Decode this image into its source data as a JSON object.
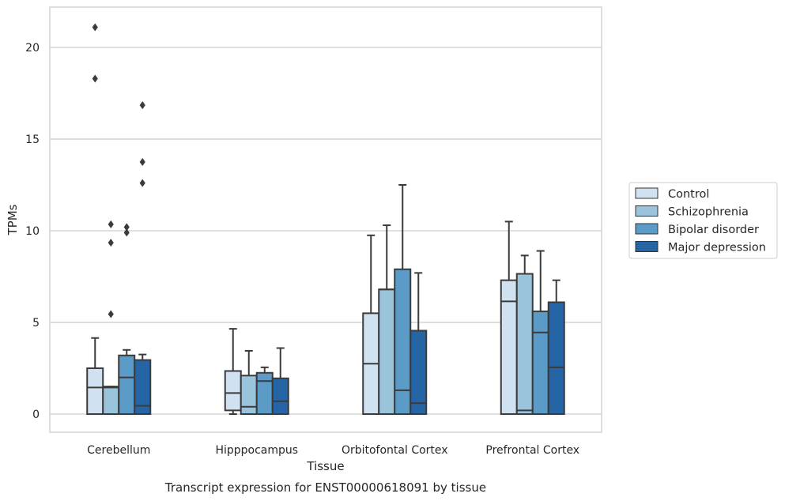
{
  "chart_data": {
    "type": "box",
    "title": "",
    "caption": "Transcript expression for ENST00000618091 by tissue",
    "xlabel": "Tissue",
    "ylabel": "TPMs",
    "ylim": [
      -1,
      22
    ],
    "yticks": [
      0,
      5,
      10,
      15,
      20
    ],
    "grid": "horizontal",
    "legend_position": "right",
    "categories": [
      "Cerebellum",
      "Hipppocampus",
      "Orbitofontal Cortex",
      "Prefrontal Cortex"
    ],
    "series": [
      {
        "name": "Control",
        "color": "#d0e1f2",
        "boxes": [
          {
            "whisker_low": 0,
            "q1": 0,
            "median": 1.45,
            "q3": 2.5,
            "whisker_high": 4.15,
            "outliers": [
              18.3,
              21.1
            ]
          },
          {
            "whisker_low": 0,
            "q1": 0.2,
            "median": 1.15,
            "q3": 2.35,
            "whisker_high": 4.65,
            "outliers": []
          },
          {
            "whisker_low": 0,
            "q1": 0,
            "median": 2.75,
            "q3": 5.5,
            "whisker_high": 9.75,
            "outliers": []
          },
          {
            "whisker_low": 0,
            "q1": 0,
            "median": 6.15,
            "q3": 7.3,
            "whisker_high": 10.5,
            "outliers": []
          }
        ]
      },
      {
        "name": "Schizophrenia",
        "color": "#9ac3dc",
        "boxes": [
          {
            "whisker_low": 0,
            "q1": 0,
            "median": 1.45,
            "q3": 1.5,
            "whisker_high": 1.5,
            "outliers": [
              5.45,
              9.35,
              10.35
            ]
          },
          {
            "whisker_low": 0,
            "q1": 0,
            "median": 0.4,
            "q3": 2.1,
            "whisker_high": 3.45,
            "outliers": []
          },
          {
            "whisker_low": 0,
            "q1": 0,
            "median": 6.8,
            "q3": 6.8,
            "whisker_high": 10.3,
            "outliers": []
          },
          {
            "whisker_low": 0,
            "q1": 0,
            "median": 0.2,
            "q3": 7.65,
            "whisker_high": 8.65,
            "outliers": []
          }
        ]
      },
      {
        "name": "Bipolar disorder",
        "color": "#5b9bc8",
        "boxes": [
          {
            "whisker_low": 0,
            "q1": 0,
            "median": 2.0,
            "q3": 3.2,
            "whisker_high": 3.5,
            "outliers": [
              9.9,
              10.2
            ]
          },
          {
            "whisker_low": 0,
            "q1": 0,
            "median": 1.8,
            "q3": 2.25,
            "whisker_high": 2.55,
            "outliers": []
          },
          {
            "whisker_low": 0,
            "q1": 0,
            "median": 1.3,
            "q3": 7.9,
            "whisker_high": 12.5,
            "outliers": []
          },
          {
            "whisker_low": 0,
            "q1": 0,
            "median": 4.45,
            "q3": 5.6,
            "whisker_high": 8.9,
            "outliers": []
          }
        ]
      },
      {
        "name": "Major depression",
        "color": "#2565a6",
        "boxes": [
          {
            "whisker_low": 0,
            "q1": 0,
            "median": 0.45,
            "q3": 2.95,
            "whisker_high": 3.25,
            "outliers": [
              12.6,
              13.75,
              16.85
            ]
          },
          {
            "whisker_low": 0,
            "q1": 0,
            "median": 0.7,
            "q3": 1.95,
            "whisker_high": 3.6,
            "outliers": []
          },
          {
            "whisker_low": 0,
            "q1": 0,
            "median": 0.6,
            "q3": 4.55,
            "whisker_high": 7.7,
            "outliers": []
          },
          {
            "whisker_low": 0,
            "q1": 0,
            "median": 2.55,
            "q3": 6.1,
            "whisker_high": 7.3,
            "outliers": []
          }
        ]
      }
    ]
  }
}
